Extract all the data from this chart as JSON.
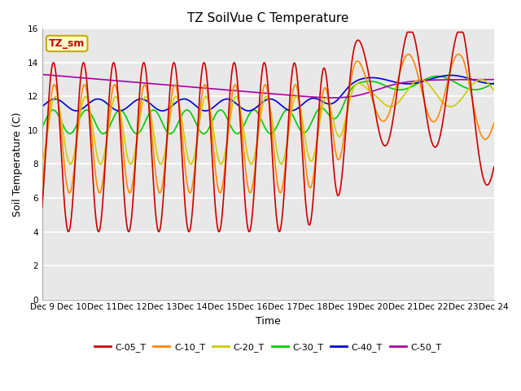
{
  "title": "TZ SoilVue C Temperature",
  "xlabel": "Time",
  "ylabel": "Soil Temperature (C)",
  "ylim": [
    0,
    16
  ],
  "yticks": [
    0,
    2,
    4,
    6,
    8,
    10,
    12,
    14,
    16
  ],
  "x_labels": [
    "Dec 9",
    "Dec 10",
    "Dec 11",
    "Dec 12",
    "Dec 13",
    "Dec 14",
    "Dec 15",
    "Dec 16",
    "Dec 17",
    "Dec 18",
    "Dec 19",
    "Dec 20",
    "Dec 21",
    "Dec 22",
    "Dec 23",
    "Dec 24"
  ],
  "legend_label": "TZ_sm",
  "series_colors": {
    "C-05_T": "#cc0000",
    "C-10_T": "#ff8800",
    "C-20_T": "#cccc00",
    "C-30_T": "#00cc00",
    "C-40_T": "#0000cc",
    "C-50_T": "#aa00aa"
  },
  "bg_color": "#e8e8e8",
  "grid_color": "#ffffff",
  "annotation_bg": "#ffffcc",
  "annotation_border": "#ccaa00"
}
